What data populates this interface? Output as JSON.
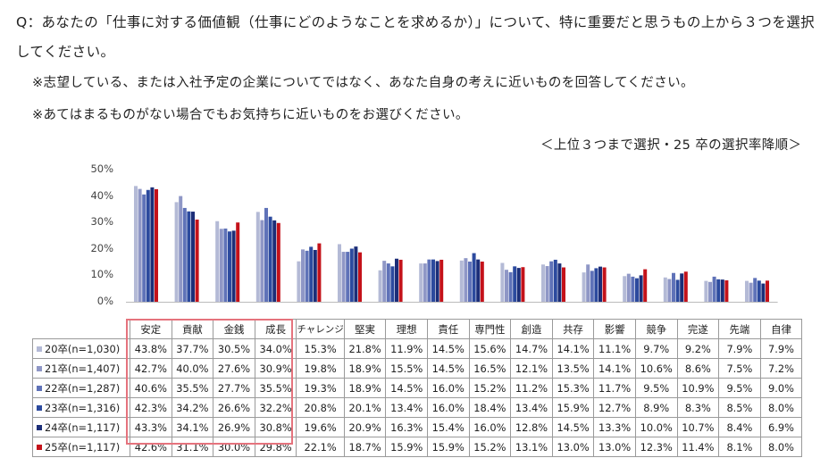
{
  "question": {
    "line1": "Q：あなたの「仕事に対する価値観（仕事にどのようなことを求めるか）」について、特に重要だと思うもの上から３つを選択",
    "line2": "してください。",
    "note1": "※志望している、または入社予定の企業についてではなく、あなた自身の考えに近いものを回答してください。",
    "note2": "※あてはまるものがない場合でもお気持ちに近いものをお選びください。",
    "note3": "＜上位３つまで選択・25 卒の選択率降順＞"
  },
  "chart_data": {
    "type": "bar",
    "categories": [
      "安定",
      "貢献",
      "金銭",
      "成長",
      "チャレンジ",
      "堅実",
      "理想",
      "責任",
      "専門性",
      "創造",
      "共存",
      "影響",
      "競争",
      "完遂",
      "先端",
      "自律"
    ],
    "ylim": [
      0,
      50
    ],
    "yticks": [
      "0%",
      "10%",
      "20%",
      "30%",
      "40%",
      "50%"
    ],
    "grid": false,
    "series": [
      {
        "name": "20卒(n=1,030)",
        "color": "#b4bad6",
        "values": [
          43.8,
          37.7,
          30.5,
          34.0,
          15.3,
          21.8,
          11.9,
          14.5,
          15.6,
          14.7,
          14.1,
          11.1,
          9.7,
          9.2,
          7.9,
          7.9
        ],
        "labels": [
          "43.8%",
          "37.7%",
          "30.5%",
          "34.0%",
          "15.3%",
          "21.8%",
          "11.9%",
          "14.5%",
          "15.6%",
          "14.7%",
          "14.1%",
          "11.1%",
          "9.7%",
          "9.2%",
          "7.9%",
          "7.9%"
        ]
      },
      {
        "name": "21卒(n=1,407)",
        "color": "#8f97c6",
        "values": [
          42.7,
          40.0,
          27.6,
          30.9,
          19.8,
          18.9,
          15.5,
          14.5,
          16.5,
          12.1,
          13.5,
          14.1,
          10.6,
          8.6,
          7.5,
          7.2
        ],
        "labels": [
          "42.7%",
          "40.0%",
          "27.6%",
          "30.9%",
          "19.8%",
          "18.9%",
          "15.5%",
          "14.5%",
          "16.5%",
          "12.1%",
          "13.5%",
          "14.1%",
          "10.6%",
          "8.6%",
          "7.5%",
          "7.2%"
        ]
      },
      {
        "name": "22卒(n=1,287)",
        "color": "#5f72b8",
        "values": [
          40.6,
          35.5,
          27.7,
          35.5,
          19.3,
          18.9,
          14.5,
          16.0,
          15.2,
          11.2,
          15.3,
          11.7,
          9.5,
          10.9,
          9.5,
          9.0
        ],
        "labels": [
          "40.6%",
          "35.5%",
          "27.7%",
          "35.5%",
          "19.3%",
          "18.9%",
          "14.5%",
          "16.0%",
          "15.2%",
          "11.2%",
          "15.3%",
          "11.7%",
          "9.5%",
          "10.9%",
          "9.5%",
          "9.0%"
        ]
      },
      {
        "name": "23卒(n=1,316)",
        "color": "#2c4a9e",
        "values": [
          42.3,
          34.2,
          26.6,
          32.2,
          20.8,
          20.1,
          13.4,
          16.0,
          18.4,
          13.4,
          15.9,
          12.7,
          8.9,
          8.3,
          8.5,
          8.0
        ],
        "labels": [
          "42.3%",
          "34.2%",
          "26.6%",
          "32.2%",
          "20.8%",
          "20.1%",
          "13.4%",
          "16.0%",
          "18.4%",
          "13.4%",
          "15.9%",
          "12.7%",
          "8.9%",
          "8.3%",
          "8.5%",
          "8.0%"
        ]
      },
      {
        "name": "24卒(n=1,117)",
        "color": "#1c2e78",
        "values": [
          43.3,
          34.1,
          26.9,
          30.8,
          19.6,
          20.9,
          16.3,
          15.4,
          16.0,
          12.8,
          14.5,
          13.3,
          10.0,
          10.7,
          8.4,
          6.9
        ],
        "labels": [
          "43.3%",
          "34.1%",
          "26.9%",
          "30.8%",
          "19.6%",
          "20.9%",
          "16.3%",
          "15.4%",
          "16.0%",
          "12.8%",
          "14.5%",
          "13.3%",
          "10.0%",
          "10.7%",
          "8.4%",
          "6.9%"
        ]
      },
      {
        "name": "25卒(n=1,117)",
        "color": "#c4121a",
        "values": [
          42.6,
          31.1,
          30.0,
          29.8,
          22.1,
          18.7,
          15.9,
          15.9,
          15.2,
          13.1,
          13.0,
          13.0,
          12.3,
          11.4,
          8.1,
          8.0
        ],
        "labels": [
          "42.6%",
          "31.1%",
          "30.0%",
          "29.8%",
          "22.1%",
          "18.7%",
          "15.9%",
          "15.9%",
          "15.2%",
          "13.1%",
          "13.0%",
          "13.0%",
          "12.3%",
          "11.4%",
          "8.1%",
          "8.0%"
        ]
      }
    ]
  }
}
